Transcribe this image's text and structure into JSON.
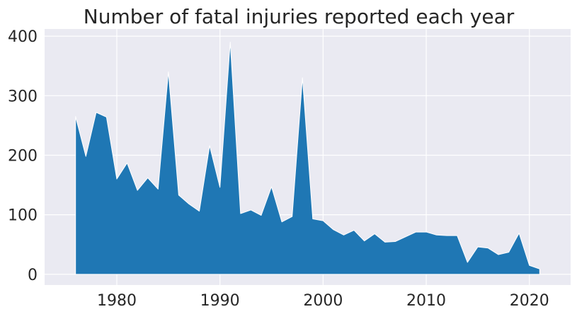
{
  "chart_data": {
    "type": "area",
    "title": "Number of fatal injuries reported each year",
    "xlabel": "",
    "ylabel": "",
    "xlim": [
      1973,
      2024
    ],
    "ylim": [
      -18,
      412
    ],
    "xticks": [
      1980,
      1990,
      2000,
      2010,
      2020
    ],
    "yticks": [
      0,
      100,
      200,
      300,
      400
    ],
    "grid": true,
    "colors": {
      "area": "#1f77b4",
      "background": "#eaeaf2",
      "grid": "#ffffff"
    },
    "series": [
      {
        "x": [
          1976,
          1977,
          1978,
          1979,
          1980,
          1981,
          1982,
          1983,
          1984,
          1985,
          1986,
          1987,
          1988,
          1989,
          1990,
          1991,
          1992,
          1993,
          1994,
          1995,
          1996,
          1997,
          1998,
          1999,
          2000,
          2001,
          2002,
          2003,
          2004,
          2005,
          2006,
          2007,
          2008,
          2009,
          2010,
          2011,
          2012,
          2013,
          2014,
          2015,
          2016,
          2017,
          2018,
          2019,
          2020,
          2021
        ],
        "values": [
          265,
          198,
          272,
          264,
          160,
          187,
          141,
          162,
          143,
          340,
          133,
          118,
          106,
          216,
          146,
          390,
          102,
          108,
          99,
          147,
          88,
          97,
          330,
          93,
          90,
          75,
          66,
          74,
          56,
          68,
          54,
          55,
          63,
          71,
          71,
          66,
          65,
          65,
          20,
          46,
          44,
          33,
          37,
          69,
          15,
          9
        ]
      }
    ]
  }
}
